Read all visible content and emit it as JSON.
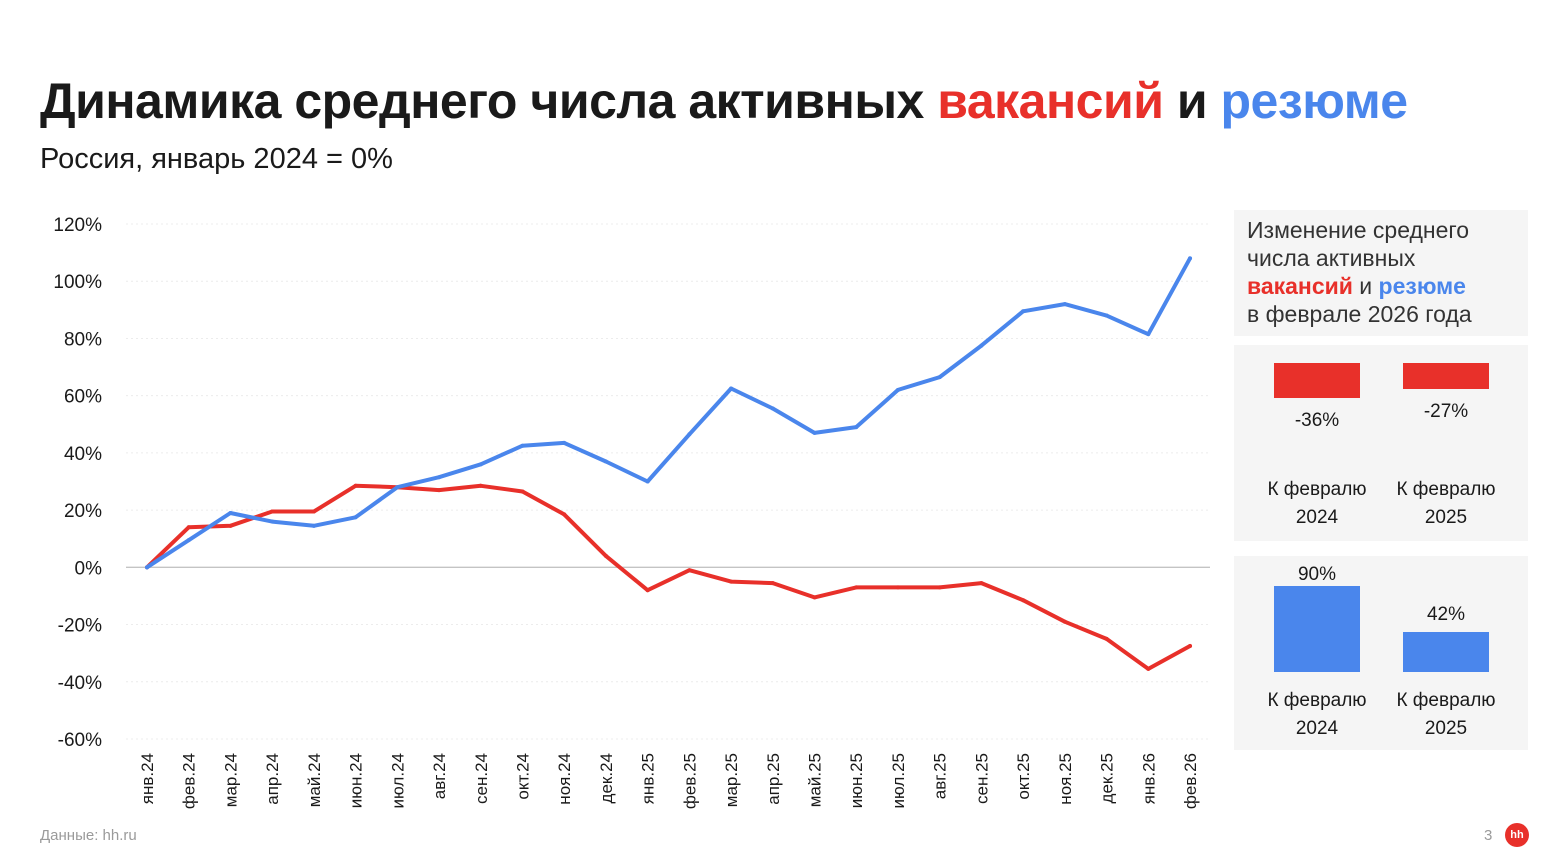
{
  "header": {
    "title_prefix": "Динамика среднего числа активных ",
    "title_vacancies": "вакансий",
    "title_and": " и ",
    "title_resumes": "резюме",
    "subtitle": "Россия, январь 2024 = 0%"
  },
  "colors": {
    "vacancies": "#e8302a",
    "resumes": "#4a86ec"
  },
  "chart_data": {
    "type": "line",
    "x": [
      "янв.24",
      "фев.24",
      "мар.24",
      "апр.24",
      "май.24",
      "июн.24",
      "июл.24",
      "авг.24",
      "сен.24",
      "окт.24",
      "ноя.24",
      "дек.24",
      "янв.25",
      "фев.25",
      "мар.25",
      "апр.25",
      "май.25",
      "июн.25",
      "июл.25",
      "авг.25",
      "сен.25",
      "окт.25",
      "ноя.25",
      "дек.25",
      "янв.26",
      "фев.26"
    ],
    "series": [
      {
        "key": "vacancies",
        "color": "#e8302a",
        "values": [
          0,
          14,
          14.5,
          19.5,
          19.5,
          28.5,
          28,
          27,
          28.5,
          26.5,
          18.5,
          4,
          -8,
          -1,
          -5,
          -5.5,
          -10.5,
          -7,
          -7,
          -7,
          -5.5,
          -11.5,
          -19,
          -25,
          -35.5,
          -27.5
        ]
      },
      {
        "key": "resumes",
        "color": "#4a86ec",
        "values": [
          0,
          9.5,
          19,
          16,
          14.5,
          17.5,
          28,
          31.5,
          36,
          42.5,
          43.5,
          37,
          30,
          46.5,
          62.5,
          55.5,
          47,
          49,
          62,
          66.5,
          77.5,
          89.5,
          92,
          88,
          81.5,
          108
        ]
      }
    ],
    "yticks": [
      "120%",
      "100%",
      "80%",
      "60%",
      "40%",
      "20%",
      "0%",
      "-20%",
      "-40%",
      "-60%"
    ],
    "ylim": [
      -60,
      120
    ],
    "grid": true,
    "legend": "none"
  },
  "panel": {
    "heading_line1": "Изменение среднего",
    "heading_line2": "числа активных",
    "heading_vacancies": "вакансий",
    "heading_and": " и ",
    "heading_resumes": "резюме",
    "heading_line4": "в феврале 2026 года",
    "vacancies": [
      {
        "value": -36,
        "label": "-36%",
        "caption_line1": "К февралю",
        "caption_line2": "2024"
      },
      {
        "value": -27,
        "label": "-27%",
        "caption_line1": "К февралю",
        "caption_line2": "2025"
      }
    ],
    "resumes": [
      {
        "value": 90,
        "label": "90%",
        "caption_line1": "К февралю",
        "caption_line2": "2024"
      },
      {
        "value": 42,
        "label": "42%",
        "caption_line1": "К февралю",
        "caption_line2": "2025"
      }
    ]
  },
  "footer": {
    "source": "Данные: hh.ru",
    "page": "3",
    "logo": "hh"
  }
}
